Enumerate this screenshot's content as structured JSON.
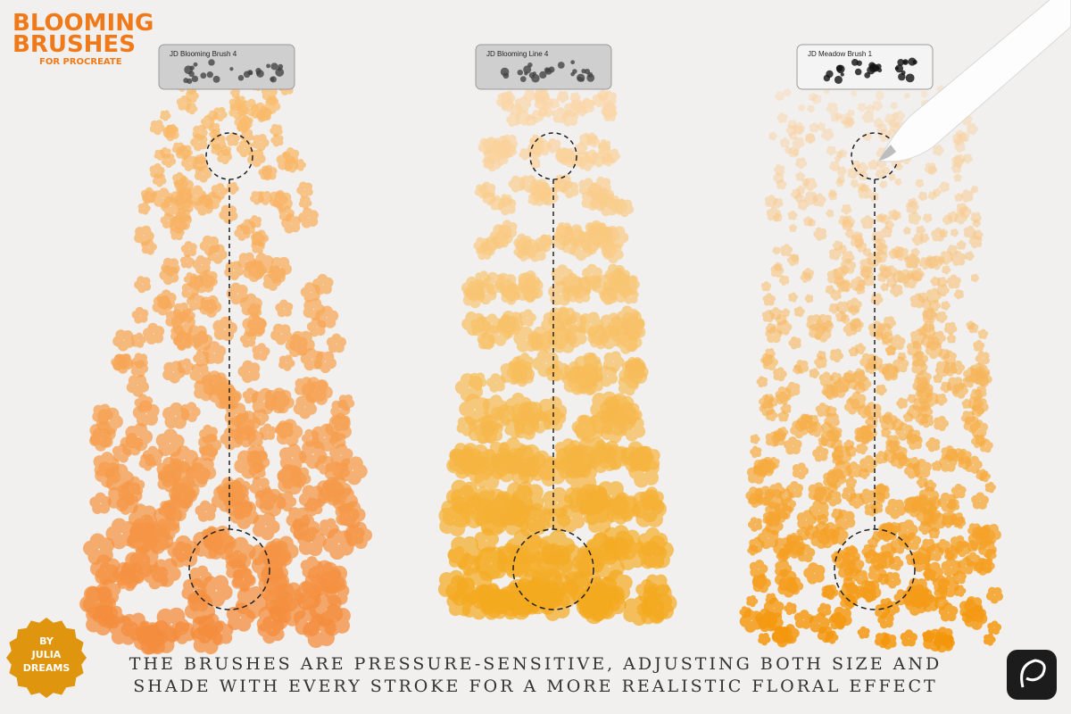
{
  "logo": {
    "title": [
      "BLOOMING",
      "BRUSHES"
    ],
    "subtitle": "FOR PROCREATE"
  },
  "brushes": [
    {
      "label": "JD Blooming Brush 4"
    },
    {
      "label": "JD Blooming Line 4"
    },
    {
      "label": "JD Meadow Brush 1"
    }
  ],
  "badge": [
    "BY",
    "JULIA",
    "DREAMS"
  ],
  "caption": [
    "THE BRUSHES ARE PRESSURE-SENSITIVE, ADJUSTING BOTH SIZE AND",
    "SHADE WITH EVERY STROKE FOR A MORE REALISTIC FLORAL EFFECT"
  ]
}
